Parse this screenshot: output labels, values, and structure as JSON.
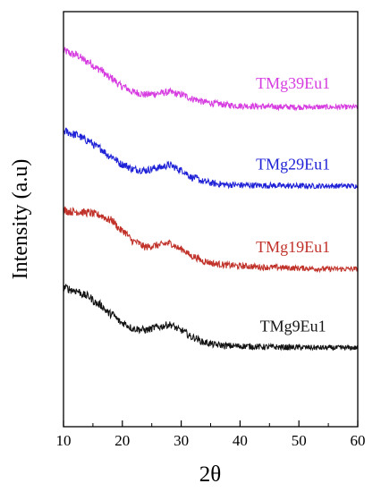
{
  "chart_data": {
    "type": "line",
    "title": "",
    "xlabel": "2θ",
    "ylabel": "Intensity (a.u)",
    "xlim": [
      10,
      60
    ],
    "xticks": [
      10,
      20,
      30,
      40,
      50,
      60
    ],
    "ylim": [
      0,
      1
    ],
    "y_tick_labels": false,
    "grid": false,
    "legend": "none",
    "series": [
      {
        "name": "TMg39Eu1",
        "color": "#d63ce0",
        "x": [
          10,
          12,
          14,
          16,
          18,
          20,
          22,
          24,
          26,
          28,
          30,
          32,
          34,
          36,
          38,
          40,
          45,
          50,
          55,
          60
        ],
        "y": [
          0.905,
          0.896,
          0.88,
          0.862,
          0.84,
          0.82,
          0.806,
          0.8,
          0.803,
          0.806,
          0.8,
          0.79,
          0.782,
          0.778,
          0.775,
          0.773,
          0.771,
          0.77,
          0.77,
          0.77
        ]
      },
      {
        "name": "TMg29Eu1",
        "color": "#1f22d6",
        "x": [
          10,
          12,
          14,
          16,
          18,
          20,
          22,
          24,
          26,
          28,
          30,
          32,
          34,
          36,
          38,
          40,
          45,
          50,
          55,
          60
        ],
        "y": [
          0.712,
          0.704,
          0.69,
          0.672,
          0.652,
          0.632,
          0.62,
          0.618,
          0.624,
          0.63,
          0.618,
          0.6,
          0.59,
          0.585,
          0.583,
          0.582,
          0.581,
          0.58,
          0.58,
          0.58
        ]
      },
      {
        "name": "TMg19Eu1",
        "color": "#c0322a",
        "x": [
          10,
          12,
          14,
          16,
          18,
          20,
          22,
          24,
          26,
          28,
          30,
          32,
          34,
          36,
          38,
          40,
          45,
          50,
          55,
          60
        ],
        "y": [
          0.52,
          0.518,
          0.516,
          0.51,
          0.498,
          0.472,
          0.446,
          0.433,
          0.437,
          0.442,
          0.428,
          0.41,
          0.398,
          0.392,
          0.389,
          0.387,
          0.384,
          0.382,
          0.38,
          0.38
        ]
      },
      {
        "name": "TMg9Eu1",
        "color": "#141414",
        "x": [
          10,
          12,
          14,
          16,
          18,
          20,
          22,
          24,
          26,
          28,
          30,
          32,
          34,
          36,
          38,
          40,
          45,
          50,
          55,
          60
        ],
        "y": [
          0.335,
          0.328,
          0.315,
          0.295,
          0.272,
          0.25,
          0.236,
          0.233,
          0.24,
          0.246,
          0.232,
          0.215,
          0.203,
          0.197,
          0.195,
          0.194,
          0.192,
          0.191,
          0.19,
          0.19
        ]
      }
    ],
    "series_labels": [
      {
        "text": "TMg39Eu1",
        "x": 49,
        "y": 0.815
      },
      {
        "text": "TMg29Eu1",
        "x": 49,
        "y": 0.62
      },
      {
        "text": "TMg19Eu1",
        "x": 49,
        "y": 0.42
      },
      {
        "text": "TMg9Eu1",
        "x": 49,
        "y": 0.23
      }
    ]
  }
}
